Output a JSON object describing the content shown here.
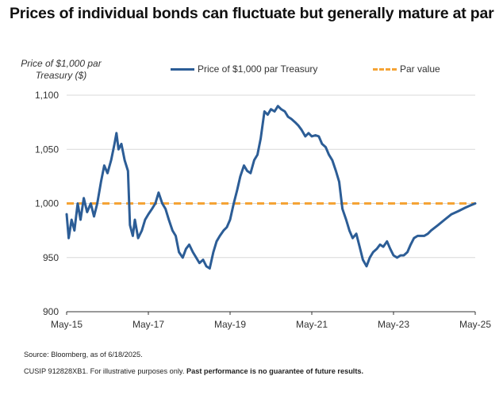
{
  "title": "Prices of individual bonds can fluctuate but generally mature at par",
  "footnote_source": "Source: Bloomberg, as of 6/18/2025.",
  "footnote_cusip": "CUSIP 912828XB1. For illustrative purposes only.",
  "footnote_bold": "Past performance is no guarantee of future results.",
  "colors": {
    "series": "#2c5d96",
    "par": "#f5a335",
    "grid": "#d9d9d9",
    "axis": "#333333"
  },
  "chart_data": {
    "type": "line",
    "ylabel": "Price of $1,000 par Treasury ($)",
    "ylim": [
      900,
      1100
    ],
    "yticks": [
      "900",
      "950",
      "1,000",
      "1,050",
      "1,100"
    ],
    "xlim": [
      2015.33,
      2025.33
    ],
    "xticks": [
      {
        "label": "May-15",
        "x": 2015.33
      },
      {
        "label": "May-17",
        "x": 2017.33
      },
      {
        "label": "May-19",
        "x": 2019.33
      },
      {
        "label": "May-21",
        "x": 2021.33
      },
      {
        "label": "May-23",
        "x": 2023.33
      },
      {
        "label": "May-25",
        "x": 2025.33
      }
    ],
    "grid": "horizontal",
    "legend_placement": "top",
    "series": [
      {
        "name": "Price of $1,000 par Treasury",
        "style": "solid",
        "points": [
          [
            2015.33,
            990
          ],
          [
            2015.38,
            968
          ],
          [
            2015.45,
            985
          ],
          [
            2015.52,
            975
          ],
          [
            2015.6,
            1000
          ],
          [
            2015.67,
            985
          ],
          [
            2015.75,
            1005
          ],
          [
            2015.83,
            992
          ],
          [
            2015.92,
            1000
          ],
          [
            2016.0,
            988
          ],
          [
            2016.08,
            1000
          ],
          [
            2016.17,
            1020
          ],
          [
            2016.25,
            1035
          ],
          [
            2016.33,
            1028
          ],
          [
            2016.42,
            1040
          ],
          [
            2016.5,
            1055
          ],
          [
            2016.55,
            1065
          ],
          [
            2016.6,
            1050
          ],
          [
            2016.67,
            1055
          ],
          [
            2016.75,
            1040
          ],
          [
            2016.83,
            1030
          ],
          [
            2016.88,
            980
          ],
          [
            2016.95,
            970
          ],
          [
            2017.0,
            985
          ],
          [
            2017.08,
            968
          ],
          [
            2017.17,
            975
          ],
          [
            2017.25,
            985
          ],
          [
            2017.33,
            990
          ],
          [
            2017.42,
            995
          ],
          [
            2017.5,
            1000
          ],
          [
            2017.58,
            1010
          ],
          [
            2017.67,
            1000
          ],
          [
            2017.75,
            995
          ],
          [
            2017.83,
            985
          ],
          [
            2017.92,
            975
          ],
          [
            2018.0,
            970
          ],
          [
            2018.08,
            955
          ],
          [
            2018.17,
            950
          ],
          [
            2018.25,
            958
          ],
          [
            2018.33,
            962
          ],
          [
            2018.42,
            955
          ],
          [
            2018.5,
            950
          ],
          [
            2018.58,
            945
          ],
          [
            2018.67,
            948
          ],
          [
            2018.75,
            942
          ],
          [
            2018.83,
            940
          ],
          [
            2018.92,
            955
          ],
          [
            2019.0,
            965
          ],
          [
            2019.08,
            970
          ],
          [
            2019.17,
            975
          ],
          [
            2019.25,
            978
          ],
          [
            2019.33,
            985
          ],
          [
            2019.42,
            1000
          ],
          [
            2019.5,
            1012
          ],
          [
            2019.58,
            1025
          ],
          [
            2019.67,
            1035
          ],
          [
            2019.75,
            1030
          ],
          [
            2019.83,
            1028
          ],
          [
            2019.92,
            1040
          ],
          [
            2020.0,
            1045
          ],
          [
            2020.08,
            1060
          ],
          [
            2020.17,
            1085
          ],
          [
            2020.25,
            1082
          ],
          [
            2020.33,
            1087
          ],
          [
            2020.42,
            1085
          ],
          [
            2020.5,
            1090
          ],
          [
            2020.58,
            1087
          ],
          [
            2020.67,
            1085
          ],
          [
            2020.75,
            1080
          ],
          [
            2020.83,
            1078
          ],
          [
            2020.92,
            1075
          ],
          [
            2021.0,
            1072
          ],
          [
            2021.08,
            1068
          ],
          [
            2021.17,
            1062
          ],
          [
            2021.25,
            1065
          ],
          [
            2021.33,
            1062
          ],
          [
            2021.42,
            1063
          ],
          [
            2021.5,
            1062
          ],
          [
            2021.58,
            1055
          ],
          [
            2021.67,
            1052
          ],
          [
            2021.75,
            1045
          ],
          [
            2021.83,
            1040
          ],
          [
            2021.92,
            1030
          ],
          [
            2022.0,
            1020
          ],
          [
            2022.08,
            995
          ],
          [
            2022.17,
            985
          ],
          [
            2022.25,
            975
          ],
          [
            2022.33,
            968
          ],
          [
            2022.42,
            972
          ],
          [
            2022.5,
            960
          ],
          [
            2022.58,
            948
          ],
          [
            2022.67,
            942
          ],
          [
            2022.75,
            950
          ],
          [
            2022.83,
            955
          ],
          [
            2022.92,
            958
          ],
          [
            2023.0,
            962
          ],
          [
            2023.08,
            960
          ],
          [
            2023.17,
            965
          ],
          [
            2023.25,
            958
          ],
          [
            2023.33,
            952
          ],
          [
            2023.42,
            950
          ],
          [
            2023.5,
            952
          ],
          [
            2023.58,
            952
          ],
          [
            2023.67,
            955
          ],
          [
            2023.75,
            962
          ],
          [
            2023.83,
            968
          ],
          [
            2023.92,
            970
          ],
          [
            2024.0,
            970
          ],
          [
            2024.08,
            970
          ],
          [
            2024.17,
            972
          ],
          [
            2024.25,
            975
          ],
          [
            2024.42,
            980
          ],
          [
            2024.58,
            985
          ],
          [
            2024.75,
            990
          ],
          [
            2024.92,
            993
          ],
          [
            2025.08,
            996
          ],
          [
            2025.2,
            998
          ],
          [
            2025.33,
            1000
          ]
        ]
      },
      {
        "name": "Par value",
        "style": "dashed",
        "constant": 1000
      }
    ]
  }
}
